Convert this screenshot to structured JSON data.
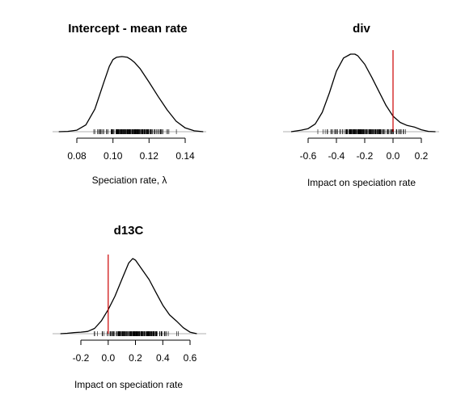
{
  "chart_data": [
    {
      "type": "line",
      "title": "Intercept - mean rate",
      "xlabel": "Speciation rate, λ",
      "xlim": [
        0.08,
        0.14
      ],
      "xticks": [
        0.08,
        0.1,
        0.12,
        0.14
      ],
      "tick_labels": [
        "0.08",
        "0.10",
        "0.12",
        "0.14"
      ],
      "reference_line": null,
      "reference_color": "#cc0000",
      "line_color": "#000000",
      "rug_range": [
        0.083,
        0.138
      ],
      "series": [
        {
          "x": [
            0.07,
            0.075,
            0.08,
            0.085,
            0.09,
            0.095,
            0.098,
            0.1,
            0.102,
            0.105,
            0.108,
            0.11,
            0.112,
            0.115,
            0.12,
            0.125,
            0.13,
            0.135,
            0.14,
            0.145,
            0.15
          ],
          "y": [
            0.0,
            0.004,
            0.02,
            0.09,
            0.3,
            0.66,
            0.87,
            0.96,
            0.99,
            1.0,
            0.99,
            0.96,
            0.92,
            0.84,
            0.66,
            0.47,
            0.29,
            0.14,
            0.05,
            0.012,
            0.0
          ]
        }
      ]
    },
    {
      "type": "line",
      "title": "div",
      "xlabel": "Impact on speciation rate",
      "xlim": [
        -0.6,
        0.2
      ],
      "xticks": [
        -0.6,
        -0.4,
        -0.2,
        0.0,
        0.2
      ],
      "tick_labels": [
        "-0.6",
        "-0.4",
        "-0.2",
        "0.0",
        "0.2"
      ],
      "reference_line": 0.0,
      "reference_color": "#cc0000",
      "line_color": "#000000",
      "rug_range": [
        -0.55,
        0.16
      ],
      "series": [
        {
          "x": [
            -0.72,
            -0.65,
            -0.6,
            -0.55,
            -0.5,
            -0.45,
            -0.4,
            -0.35,
            -0.3,
            -0.27,
            -0.25,
            -0.2,
            -0.15,
            -0.1,
            -0.05,
            0.0,
            0.05,
            0.1,
            0.15,
            0.2,
            0.25,
            0.3
          ],
          "y": [
            0.0,
            0.02,
            0.04,
            0.1,
            0.25,
            0.5,
            0.78,
            0.95,
            1.0,
            1.0,
            0.98,
            0.87,
            0.7,
            0.52,
            0.34,
            0.2,
            0.12,
            0.08,
            0.06,
            0.025,
            0.004,
            0.0
          ]
        }
      ]
    },
    {
      "type": "line",
      "title": "d13C",
      "xlabel": "Impact on speciation rate",
      "xlim": [
        -0.2,
        0.6
      ],
      "xticks": [
        -0.2,
        0.0,
        0.2,
        0.4,
        0.6
      ],
      "tick_labels": [
        "-0.2",
        "0.0",
        "0.2",
        "0.4",
        "0.6"
      ],
      "reference_line": 0.0,
      "reference_color": "#cc0000",
      "line_color": "#000000",
      "rug_range": [
        -0.15,
        0.58
      ],
      "series": [
        {
          "x": [
            -0.35,
            -0.3,
            -0.25,
            -0.2,
            -0.15,
            -0.1,
            -0.05,
            0.0,
            0.05,
            0.1,
            0.15,
            0.18,
            0.2,
            0.25,
            0.3,
            0.35,
            0.4,
            0.45,
            0.5,
            0.55,
            0.6,
            0.65
          ],
          "y": [
            0.0,
            0.005,
            0.015,
            0.02,
            0.03,
            0.07,
            0.17,
            0.32,
            0.5,
            0.72,
            0.94,
            1.0,
            0.98,
            0.85,
            0.72,
            0.55,
            0.38,
            0.25,
            0.17,
            0.08,
            0.02,
            0.0
          ]
        }
      ]
    }
  ]
}
